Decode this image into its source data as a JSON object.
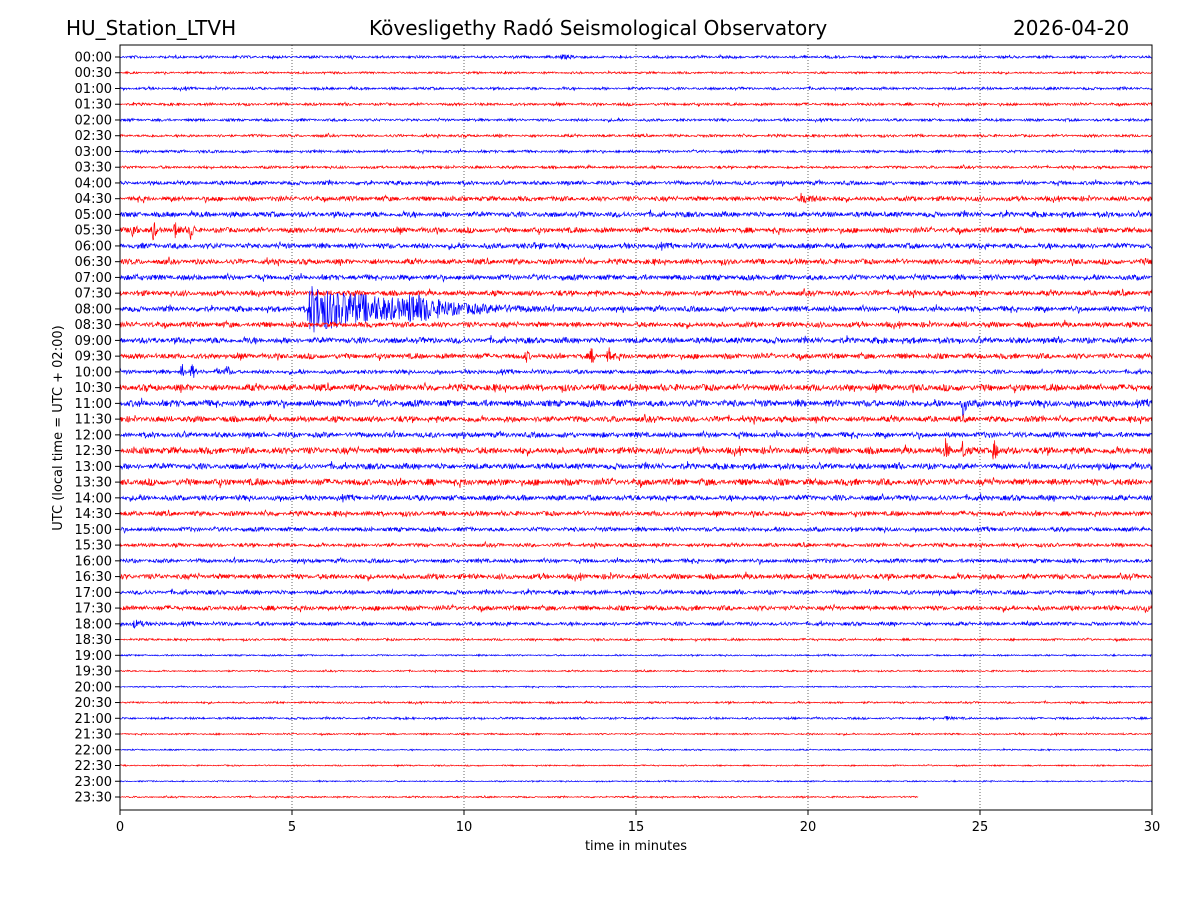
{
  "header": {
    "station": "HU_Station_LTVH",
    "title": "Kövesligethy Radó Seismological Observatory",
    "date": "2026-04-20"
  },
  "chart_data": {
    "type": "line",
    "subtype": "helicorder",
    "xlabel": "time in minutes",
    "ylabel": "UTC (local time = UTC + 02:00)",
    "xlim": [
      0,
      30
    ],
    "xticks": [
      "0",
      "5",
      "10",
      "15",
      "20",
      "25",
      "30"
    ],
    "grid": "vertical dotted at x ticks",
    "colors": [
      "#0000ff",
      "#ff0000"
    ],
    "trace_end_minute_last_row": 23.2,
    "rows": [
      {
        "label": "00:00",
        "noise": 1.0
      },
      {
        "label": "00:30",
        "noise": 0.8
      },
      {
        "label": "01:00",
        "noise": 1.0
      },
      {
        "label": "01:30",
        "noise": 1.0
      },
      {
        "label": "02:00",
        "noise": 1.0
      },
      {
        "label": "02:30",
        "noise": 1.0
      },
      {
        "label": "03:00",
        "noise": 1.0
      },
      {
        "label": "03:30",
        "noise": 1.0
      },
      {
        "label": "04:00",
        "noise": 1.5
      },
      {
        "label": "04:30",
        "noise": 1.8
      },
      {
        "label": "05:00",
        "noise": 2.0
      },
      {
        "label": "05:30",
        "noise": 2.0
      },
      {
        "label": "06:00",
        "noise": 2.0
      },
      {
        "label": "06:30",
        "noise": 2.0
      },
      {
        "label": "07:00",
        "noise": 2.0
      },
      {
        "label": "07:30",
        "noise": 2.0
      },
      {
        "label": "08:00",
        "noise": 2.0
      },
      {
        "label": "08:30",
        "noise": 2.0
      },
      {
        "label": "09:00",
        "noise": 2.2
      },
      {
        "label": "09:30",
        "noise": 2.0
      },
      {
        "label": "10:00",
        "noise": 1.5
      },
      {
        "label": "10:30",
        "noise": 2.5
      },
      {
        "label": "11:00",
        "noise": 2.5
      },
      {
        "label": "11:30",
        "noise": 2.2
      },
      {
        "label": "12:00",
        "noise": 2.0
      },
      {
        "label": "12:30",
        "noise": 2.5
      },
      {
        "label": "13:00",
        "noise": 2.2
      },
      {
        "label": "13:30",
        "noise": 2.5
      },
      {
        "label": "14:00",
        "noise": 2.0
      },
      {
        "label": "14:30",
        "noise": 1.8
      },
      {
        "label": "15:00",
        "noise": 1.6
      },
      {
        "label": "15:30",
        "noise": 1.4
      },
      {
        "label": "16:00",
        "noise": 1.5
      },
      {
        "label": "16:30",
        "noise": 2.0
      },
      {
        "label": "17:00",
        "noise": 1.6
      },
      {
        "label": "17:30",
        "noise": 1.8
      },
      {
        "label": "18:00",
        "noise": 1.4
      },
      {
        "label": "18:30",
        "noise": 0.8
      },
      {
        "label": "19:00",
        "noise": 0.6
      },
      {
        "label": "19:30",
        "noise": 0.6
      },
      {
        "label": "20:00",
        "noise": 0.5
      },
      {
        "label": "20:30",
        "noise": 0.7
      },
      {
        "label": "21:00",
        "noise": 0.8
      },
      {
        "label": "21:30",
        "noise": 0.6
      },
      {
        "label": "22:00",
        "noise": 0.5
      },
      {
        "label": "22:30",
        "noise": 0.5
      },
      {
        "label": "23:00",
        "noise": 0.5
      },
      {
        "label": "23:30",
        "noise": 0.6
      }
    ],
    "events": [
      {
        "row": 0,
        "t": 12.8,
        "amp": 3,
        "dur": 1.5
      },
      {
        "row": 9,
        "t": 19.8,
        "amp": 6,
        "dur": 1.5
      },
      {
        "row": 11,
        "t": 0.35,
        "amp": 12,
        "dur": 0.3
      },
      {
        "row": 11,
        "t": 0.95,
        "amp": 12,
        "dur": 0.3
      },
      {
        "row": 11,
        "t": 1.6,
        "amp": 12,
        "dur": 0.3
      },
      {
        "row": 11,
        "t": 2.05,
        "amp": 12,
        "dur": 0.3
      },
      {
        "row": 12,
        "t": 12.0,
        "amp": 5,
        "dur": 1.0
      },
      {
        "row": 13,
        "t": 29.8,
        "amp": 5,
        "dur": 0.4
      },
      {
        "row": 14,
        "t": 0.4,
        "amp": 4,
        "dur": 1.0
      },
      {
        "row": 16,
        "t": 5.5,
        "amp": 25,
        "dur": 7
      },
      {
        "row": 16,
        "t": 8.4,
        "amp": 18,
        "dur": 3
      },
      {
        "row": 19,
        "t": 11.8,
        "amp": 8,
        "dur": 0.3
      },
      {
        "row": 19,
        "t": 13.7,
        "amp": 10,
        "dur": 0.3
      },
      {
        "row": 19,
        "t": 14.2,
        "amp": 10,
        "dur": 0.4
      },
      {
        "row": 20,
        "t": 1.8,
        "amp": 10,
        "dur": 0.2
      },
      {
        "row": 20,
        "t": 2.1,
        "amp": 10,
        "dur": 0.2
      },
      {
        "row": 20,
        "t": 2.8,
        "amp": 8,
        "dur": 0.2
      },
      {
        "row": 20,
        "t": 3.1,
        "amp": 10,
        "dur": 0.2
      },
      {
        "row": 22,
        "t": 24.5,
        "amp": 14,
        "dur": 0.3
      },
      {
        "row": 25,
        "t": 24.0,
        "amp": 13,
        "dur": 0.3
      },
      {
        "row": 25,
        "t": 24.5,
        "amp": 11,
        "dur": 0.3
      },
      {
        "row": 25,
        "t": 25.4,
        "amp": 13,
        "dur": 0.3
      },
      {
        "row": 35,
        "t": 29.8,
        "amp": 5,
        "dur": 0.5
      },
      {
        "row": 36,
        "t": 0.4,
        "amp": 5,
        "dur": 1.0
      },
      {
        "row": 42,
        "t": 24.0,
        "amp": 3,
        "dur": 0.6
      }
    ]
  }
}
